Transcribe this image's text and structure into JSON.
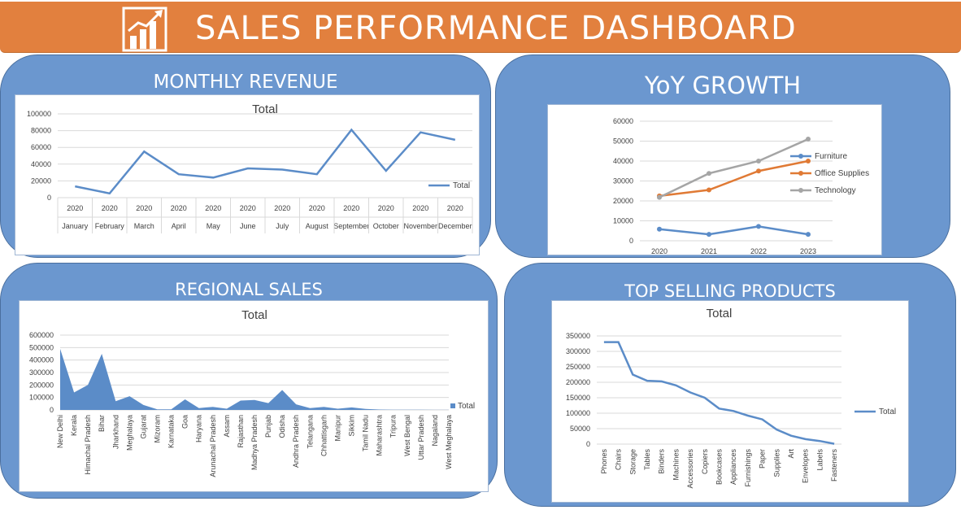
{
  "header": {
    "title": "SALES PERFORMANCE DASHBOARD",
    "icon": "bar-chart-growth-icon"
  },
  "panels": {
    "monthly": "MONTHLY REVENUE",
    "yoy": "YoY GROWTH",
    "regional": "REGIONAL SALES",
    "products": "TOP SELLING PRODUCTS"
  },
  "colors": {
    "header": "#e2803e",
    "panel": "#6b97cf",
    "series_blue": "#5b8cc8",
    "series_orange": "#e07a35",
    "series_gray": "#a5a5a5"
  },
  "chart_data": [
    {
      "id": "monthly",
      "type": "line",
      "title": "Total",
      "categories": [
        "January",
        "February",
        "March",
        "April",
        "May",
        "June",
        "July",
        "August",
        "September",
        "October",
        "November",
        "December"
      ],
      "category_group": [
        "2020",
        "2020",
        "2020",
        "2020",
        "2020",
        "2020",
        "2020",
        "2020",
        "2020",
        "2020",
        "2020",
        "2020"
      ],
      "series": [
        {
          "name": "Total",
          "values": [
            13500,
            5000,
            55000,
            28000,
            24000,
            35000,
            33500,
            28000,
            81000,
            32000,
            78000,
            69000
          ]
        }
      ],
      "ylim": [
        0,
        100000
      ],
      "yticks": [
        "0",
        "20000",
        "40000",
        "60000",
        "80000",
        "100000"
      ],
      "legend_position": "right",
      "grid": true
    },
    {
      "id": "yoy",
      "type": "line",
      "title": "",
      "categories": [
        "2020",
        "2021",
        "2022",
        "2023"
      ],
      "series": [
        {
          "name": "Furniture",
          "values": [
            5800,
            3200,
            7200,
            3200
          ],
          "color": "#5b8cc8"
        },
        {
          "name": "Office Supplies",
          "values": [
            22500,
            25500,
            35000,
            40000
          ],
          "color": "#e07a35"
        },
        {
          "name": "Technology",
          "values": [
            21800,
            33800,
            40000,
            51000
          ],
          "color": "#a5a5a5"
        }
      ],
      "ylim": [
        0,
        60000
      ],
      "yticks": [
        "0",
        "10000",
        "20000",
        "30000",
        "40000",
        "50000",
        "60000"
      ],
      "legend_position": "right",
      "grid": true
    },
    {
      "id": "regional",
      "type": "area",
      "title": "Total",
      "categories": [
        "New Delhi",
        "Kerala",
        "Himachal Pradesh",
        "Bihar",
        "Jharkhand",
        "Meghalaya",
        "Gujarat",
        "Mizoram",
        "Karnataka",
        "Goa",
        "Haryana",
        "Arunachal Pradesh",
        "Assam",
        "Rajasthan",
        "Madhya Pradesh",
        "Punjab",
        "Odisha",
        "Andhra Pradesh",
        "Telangana",
        "Chhattisgarh",
        "Manipur",
        "Sikkim",
        "Tamil Nadu",
        "Maharashtra",
        "Tripura",
        "West Bengal",
        "Uttar Pradesh",
        "Nagaland",
        "West Meghalaya"
      ],
      "series": [
        {
          "name": "Total",
          "values": [
            490000,
            140000,
            200000,
            450000,
            70000,
            110000,
            40000,
            5000,
            5000,
            85000,
            15000,
            25000,
            10000,
            75000,
            80000,
            55000,
            160000,
            45000,
            15000,
            25000,
            10000,
            20000,
            8000,
            3000,
            2000,
            1500,
            1000,
            800,
            500
          ]
        }
      ],
      "ylim": [
        0,
        600000
      ],
      "yticks": [
        "0",
        "100000",
        "200000",
        "300000",
        "400000",
        "500000",
        "600000"
      ],
      "legend_position": "right",
      "grid": true
    },
    {
      "id": "products",
      "type": "line",
      "title": "Total",
      "categories": [
        "Phones",
        "Chairs",
        "Storage",
        "Tables",
        "Binders",
        "Machines",
        "Accessories",
        "Copiers",
        "Bookcases",
        "Appliances",
        "Furnishings",
        "Paper",
        "Supplies",
        "Art",
        "Envelopes",
        "Labels",
        "Fasteners"
      ],
      "series": [
        {
          "name": "Total",
          "values": [
            330000,
            330000,
            225000,
            205000,
            203000,
            190000,
            167000,
            150000,
            115000,
            107000,
            92000,
            80000,
            47000,
            27000,
            16000,
            10000,
            1000
          ]
        }
      ],
      "ylim": [
        0,
        350000
      ],
      "yticks": [
        "0",
        "50000",
        "100000",
        "150000",
        "200000",
        "250000",
        "300000",
        "350000"
      ],
      "legend_position": "right",
      "grid": true
    }
  ]
}
